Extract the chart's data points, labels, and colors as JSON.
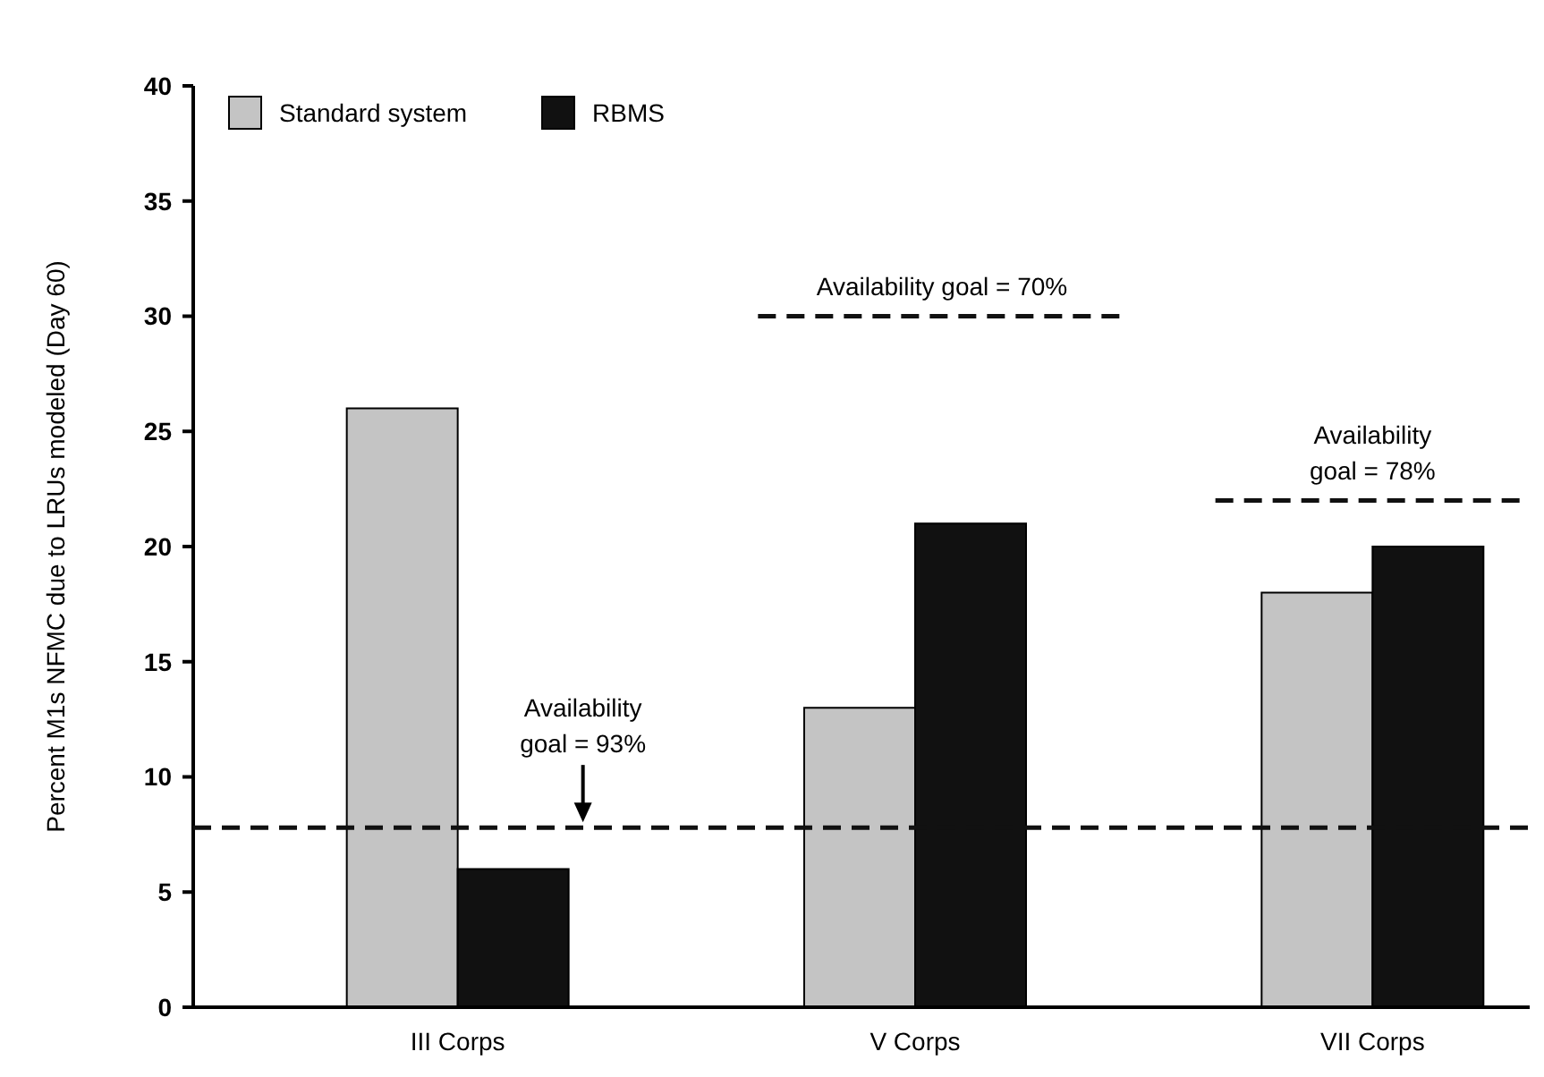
{
  "chart_data": {
    "type": "bar",
    "ylabel": "Percent M1s NFMC due to LRUs modeled (Day 60)",
    "categories": [
      "III Corps",
      "V Corps",
      "VII Corps"
    ],
    "series": [
      {
        "name": "Standard system",
        "color": "#c4c4c4",
        "values": [
          26,
          13,
          18
        ]
      },
      {
        "name": "RBMS",
        "color": "#111111",
        "values": [
          6,
          21,
          20
        ]
      }
    ],
    "ylim": [
      0,
      40
    ],
    "yticks": [
      0,
      5,
      10,
      15,
      20,
      25,
      30,
      35,
      40
    ],
    "grid": false,
    "legend": "top left",
    "annotations": [
      "Availability goal = 93%",
      "Availability goal = 70%",
      "Availability goal = 78%"
    ],
    "ref_lines": [
      {
        "axis": "y",
        "value": 7.8,
        "color": "#111111",
        "line_style": "dashed"
      },
      {
        "axis": "y",
        "value": 30,
        "color": "#111111",
        "line_style": "dashed"
      },
      {
        "axis": "y",
        "value": 22,
        "color": "#111111",
        "line_style": "dashed"
      }
    ]
  }
}
